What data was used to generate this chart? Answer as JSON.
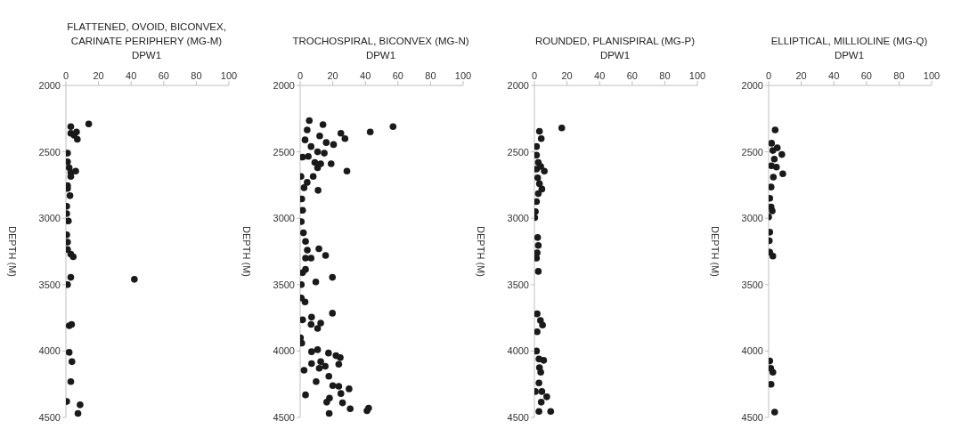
{
  "chart_data": [
    {
      "type": "scatter",
      "title": "FLATTENED, OVOID, BICONVEX, CARINATE PERIPHERY (MG-M) DPW1",
      "ylabel": "DEPTH (M)",
      "xlim": [
        0,
        100
      ],
      "xticks": [
        0,
        20,
        40,
        60,
        80,
        100
      ],
      "ylim": [
        4500,
        2000
      ],
      "yticks": [
        2000,
        2500,
        3000,
        3500,
        4000,
        4500
      ],
      "marker": "circle",
      "series": [
        {
          "color": "#1a1a1a",
          "x": [
            14,
            3,
            3,
            6.5,
            5,
            7,
            1,
            1,
            2,
            3,
            6,
            3,
            1,
            1,
            2.5,
            0.5,
            0.5,
            1.5,
            0.5,
            1,
            1,
            4.5,
            3,
            3,
            42,
            1,
            3.5,
            2,
            2,
            3.7,
            3,
            0.5,
            8.7,
            7.4
          ],
          "values": [
            2290,
            2310,
            2360,
            2350,
            2375,
            2405,
            2510,
            2575,
            2620,
            2655,
            2645,
            2685,
            2755,
            2775,
            2830,
            2910,
            2965,
            3020,
            3125,
            3180,
            3235,
            3290,
            3270,
            3445,
            3460,
            3500,
            3800,
            3810,
            4010,
            4080,
            4230,
            4380,
            4405,
            4470
          ]
        }
      ]
    },
    {
      "type": "scatter",
      "title": "TROCHOSPIRAL, BICONVEX (MG-N) DPW1",
      "ylabel": "DEPTH (M)",
      "xlim": [
        0,
        100
      ],
      "xticks": [
        0,
        20,
        40,
        60,
        80,
        100
      ],
      "ylim": [
        4500,
        2000
      ],
      "yticks": [
        2000,
        2500,
        3000,
        3500,
        4000,
        4500
      ],
      "marker": "circle",
      "series": [
        {
          "color": "#1a1a1a",
          "x": [
            5.6,
            14,
            57,
            43,
            4.3,
            12,
            25,
            27.5,
            3,
            16,
            20.5,
            6.7,
            1.5,
            5,
            10.7,
            14.8,
            9,
            12.6,
            19,
            28.7,
            10.7,
            8,
            0.5,
            4.3,
            2.4,
            11,
            1,
            1.5,
            0.7,
            2,
            3.3,
            4.4,
            11.5,
            3.3,
            6.7,
            15.6,
            3.3,
            1.5,
            19.8,
            9.6,
            0.7,
            0.7,
            3,
            19.8,
            7,
            1.5,
            6.7,
            12.6,
            10.7,
            0.2,
            1,
            7,
            10.7,
            17.4,
            22,
            24.6,
            12.6,
            15.4,
            7,
            11.7,
            23.7,
            2.4,
            17.6,
            9.8,
            20,
            23.7,
            30,
            25,
            18,
            16.3,
            26,
            3.3,
            30.7,
            42,
            17.8,
            41
          ],
          "values": [
            2265,
            2295,
            2310,
            2350,
            2335,
            2380,
            2360,
            2400,
            2410,
            2430,
            2445,
            2460,
            2540,
            2535,
            2500,
            2510,
            2580,
            2590,
            2590,
            2645,
            2620,
            2685,
            2685,
            2730,
            2770,
            2790,
            2855,
            2940,
            3025,
            3110,
            3175,
            3240,
            3230,
            3300,
            3300,
            3280,
            3385,
            3410,
            3445,
            3480,
            3500,
            3600,
            3630,
            3715,
            3745,
            3765,
            3800,
            3790,
            3830,
            3900,
            3940,
            4005,
            3990,
            4015,
            4035,
            4050,
            4080,
            4115,
            4095,
            4130,
            4100,
            4145,
            4190,
            4230,
            4260,
            4265,
            4285,
            4320,
            4355,
            4385,
            4390,
            4330,
            4435,
            4430,
            4470,
            4450
          ]
        }
      ]
    },
    {
      "type": "scatter",
      "title": "ROUNDED, PLANISPIRAL (MG-P) DPW1",
      "ylabel": "DEPTH (M)",
      "xlim": [
        0,
        100
      ],
      "xticks": [
        0,
        20,
        40,
        60,
        80,
        100
      ],
      "ylim": [
        4500,
        2000
      ],
      "yticks": [
        2000,
        2500,
        3000,
        3500,
        4000,
        4500
      ],
      "marker": "circle",
      "series": [
        {
          "color": "#1a1a1a",
          "x": [
            16.8,
            3.1,
            4.2,
            1.3,
            1.3,
            2.4,
            3.9,
            6.1,
            1.3,
            2,
            3.1,
            4.6,
            2.4,
            1.3,
            0.6,
            0.2,
            2,
            2.4,
            1.7,
            1.3,
            2.4,
            1.7,
            3.7,
            5,
            1.7,
            1.3,
            2.8,
            5.7,
            3.1,
            3.9,
            2.8,
            0.6,
            4.6,
            7.6,
            4.2,
            2.8,
            10
          ],
          "values": [
            2320,
            2345,
            2400,
            2460,
            2525,
            2580,
            2610,
            2645,
            2630,
            2695,
            2740,
            2780,
            2815,
            2875,
            2950,
            2995,
            3145,
            3205,
            3260,
            3300,
            3400,
            3720,
            3770,
            3805,
            3855,
            4000,
            4060,
            4070,
            4125,
            4160,
            4240,
            4305,
            4305,
            4345,
            4385,
            4455,
            4455
          ]
        }
      ]
    },
    {
      "type": "scatter",
      "title": "ELLIPTICAL, MILLIOLINE (MG-Q) DPW1",
      "ylabel": "DEPTH (M)",
      "xlim": [
        0,
        100
      ],
      "xticks": [
        0,
        20,
        40,
        60,
        80,
        100
      ],
      "ylim": [
        4500,
        2000
      ],
      "yticks": [
        2000,
        2500,
        3000,
        3500,
        4000,
        4500
      ],
      "marker": "circle",
      "series": [
        {
          "color": "#1a1a1a",
          "x": [
            4,
            1.8,
            2.6,
            5.3,
            8.1,
            3.5,
            1.7,
            4.8,
            8.7,
            2.9,
            1.5,
            0.7,
            1.5,
            2.2,
            0,
            0.7,
            0.4,
            0.7,
            2.6,
            0.7,
            1.3,
            2.6,
            1.5,
            3.7
          ],
          "values": [
            2335,
            2435,
            2490,
            2470,
            2520,
            2555,
            2605,
            2615,
            2665,
            2690,
            2765,
            2850,
            2915,
            2945,
            2990,
            3105,
            3170,
            3255,
            3285,
            4075,
            4130,
            4160,
            4250,
            4460
          ]
        }
      ]
    }
  ]
}
